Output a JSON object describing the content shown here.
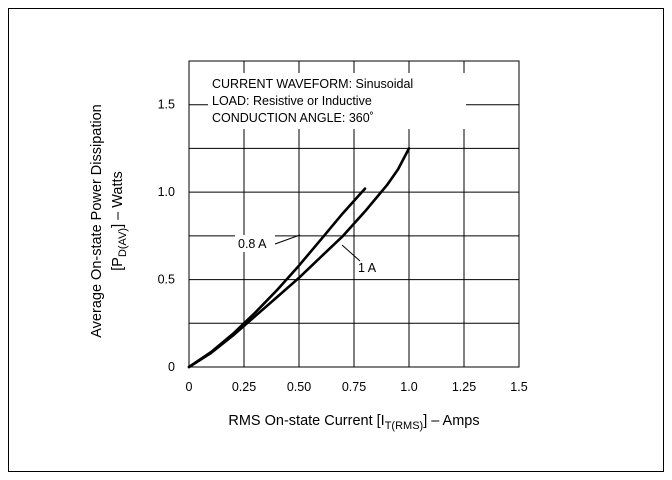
{
  "chart_data": {
    "type": "line",
    "title": "",
    "xlabel": {
      "before": "RMS On-state Current [I",
      "sub": "T(RMS)",
      "after": "] – Amps"
    },
    "ylabel": {
      "line1": "Average On-state Power Dissipation",
      "line2_before": "[P",
      "line2_sub": "D(AV)",
      "line2_after": "] – Watts"
    },
    "xlim": [
      0,
      1.5
    ],
    "ylim": [
      0,
      1.75
    ],
    "x_ticks": [
      0,
      0.25,
      0.5,
      0.75,
      1.0,
      1.25,
      1.5
    ],
    "x_tick_labels": [
      "0",
      "0.25",
      "0.50",
      "0.75",
      "1.0",
      "1.25",
      "1.5"
    ],
    "y_ticks": [
      0,
      0.5,
      1.0,
      1.5
    ],
    "y_tick_labels": [
      "0",
      "0.5",
      "1.0",
      "1.5"
    ],
    "grid": true,
    "annotations": [
      "CURRENT WAVEFORM: Sinusoidal",
      "LOAD: Resistive or Inductive",
      "CONDUCTION ANGLE: 360˚"
    ],
    "series": [
      {
        "name": "0.8 A",
        "x": [
          0,
          0.1,
          0.2,
          0.3,
          0.4,
          0.5,
          0.6,
          0.7,
          0.8
        ],
        "y": [
          0,
          0.085,
          0.19,
          0.31,
          0.44,
          0.58,
          0.73,
          0.88,
          1.02
        ]
      },
      {
        "name": "1 A",
        "x": [
          0,
          0.1,
          0.2,
          0.3,
          0.4,
          0.5,
          0.6,
          0.7,
          0.8,
          0.9,
          0.95,
          1.0
        ],
        "y": [
          0,
          0.08,
          0.18,
          0.29,
          0.4,
          0.51,
          0.63,
          0.75,
          0.89,
          1.04,
          1.13,
          1.25
        ]
      }
    ]
  }
}
